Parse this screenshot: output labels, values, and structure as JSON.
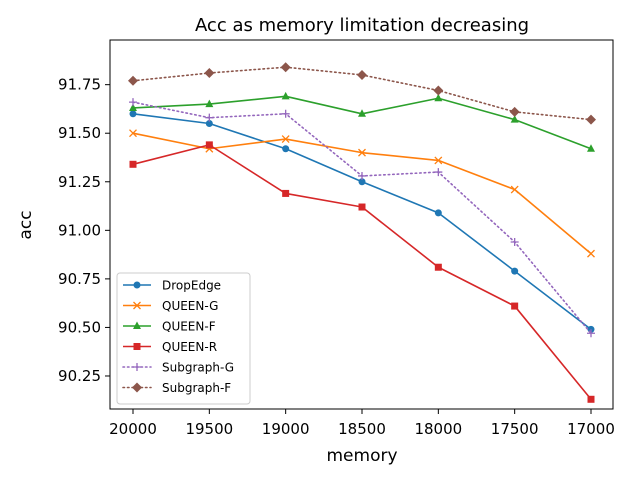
{
  "chart_data": {
    "type": "line",
    "title": "Acc as memory limitation decreasing",
    "xlabel": "memory",
    "ylabel": "acc",
    "categories": [
      "20000",
      "19500",
      "19000",
      "18500",
      "18000",
      "17500",
      "17000"
    ],
    "ylim": [
      90.08,
      91.98
    ],
    "yticks": [
      "90.25",
      "90.50",
      "90.75",
      "91.00",
      "91.25",
      "91.50",
      "91.75"
    ],
    "grid": false,
    "legend_position": "lower-left",
    "series": [
      {
        "name": "DropEdge",
        "color": "#1f77b4",
        "marker": "circle",
        "dash": "solid",
        "values": [
          91.6,
          91.55,
          91.42,
          91.25,
          91.09,
          90.79,
          90.49
        ]
      },
      {
        "name": "QUEEN-G",
        "color": "#ff7f0e",
        "marker": "x",
        "dash": "solid",
        "values": [
          91.5,
          91.42,
          91.47,
          91.4,
          91.36,
          91.21,
          90.88
        ]
      },
      {
        "name": "QUEEN-F",
        "color": "#2ca02c",
        "marker": "triangle",
        "dash": "solid",
        "values": [
          91.63,
          91.65,
          91.69,
          91.6,
          91.68,
          91.57,
          91.42
        ]
      },
      {
        "name": "QUEEN-R",
        "color": "#d62728",
        "marker": "square",
        "dash": "solid",
        "values": [
          91.34,
          91.44,
          91.19,
          91.12,
          90.81,
          90.61,
          90.13
        ]
      },
      {
        "name": "Subgraph-G",
        "color": "#9467bd",
        "marker": "plus",
        "dash": "dotted",
        "values": [
          91.66,
          91.58,
          91.6,
          91.28,
          91.3,
          90.94,
          90.47
        ]
      },
      {
        "name": "Subgraph-F",
        "color": "#8c564b",
        "marker": "diamond",
        "dash": "dotted",
        "values": [
          91.77,
          91.81,
          91.84,
          91.8,
          91.72,
          91.61,
          91.57
        ]
      }
    ]
  }
}
